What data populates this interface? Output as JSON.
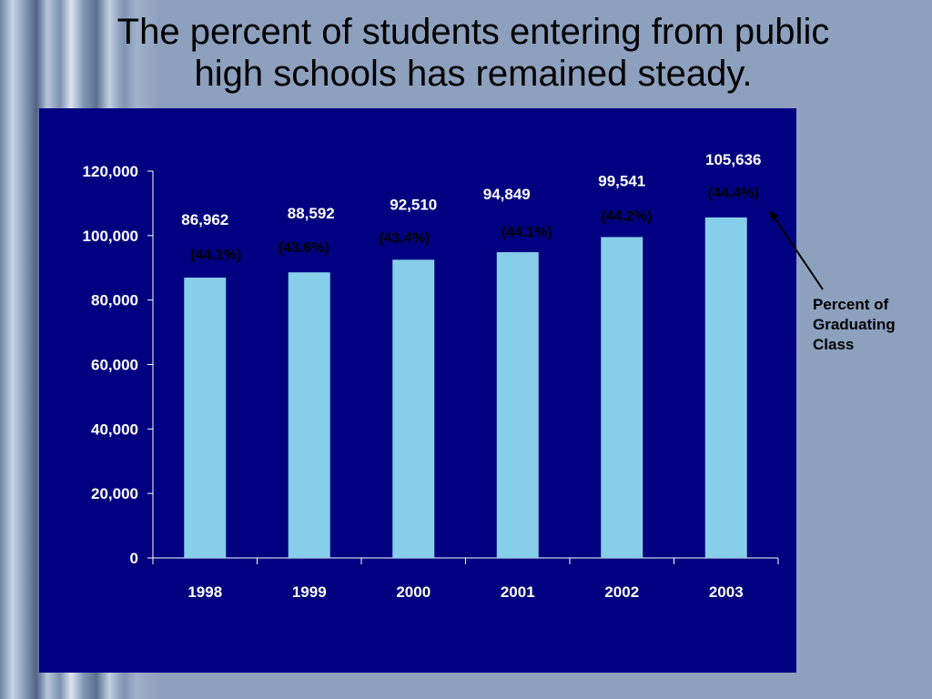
{
  "slide": {
    "title_line1": "The percent of students entering from public",
    "title_line2": "high schools has remained steady."
  },
  "annotation": {
    "label": "Percent of\nGraduating\nClass"
  },
  "colors": {
    "background": "#8da0be",
    "panel": "#000080",
    "bar": "#87ceeb",
    "axis_text": "#ffffff",
    "percent_text": "#000000"
  },
  "chart_data": {
    "type": "bar",
    "categories": [
      "1998",
      "1999",
      "2000",
      "2001",
      "2002",
      "2003"
    ],
    "values": [
      86962,
      88592,
      92510,
      94849,
      99541,
      105636
    ],
    "value_labels": [
      "86,962",
      "88,592",
      "92,510",
      "94,849",
      "99,541",
      "105,636"
    ],
    "percent_labels": [
      "(44.1%)",
      "(43.6%)",
      "(43.4%)",
      "(44.1%)",
      "(44.2%)",
      "(44.4%)"
    ],
    "ylim": [
      0,
      120000
    ],
    "yticks": [
      0,
      20000,
      40000,
      60000,
      80000,
      100000,
      120000
    ],
    "ytick_labels": [
      "0",
      "20,000",
      "40,000",
      "60,000",
      "80,000",
      "100,000",
      "120,000"
    ],
    "title": "",
    "xlabel": "",
    "ylabel": "",
    "grid": false,
    "legend": "none"
  }
}
